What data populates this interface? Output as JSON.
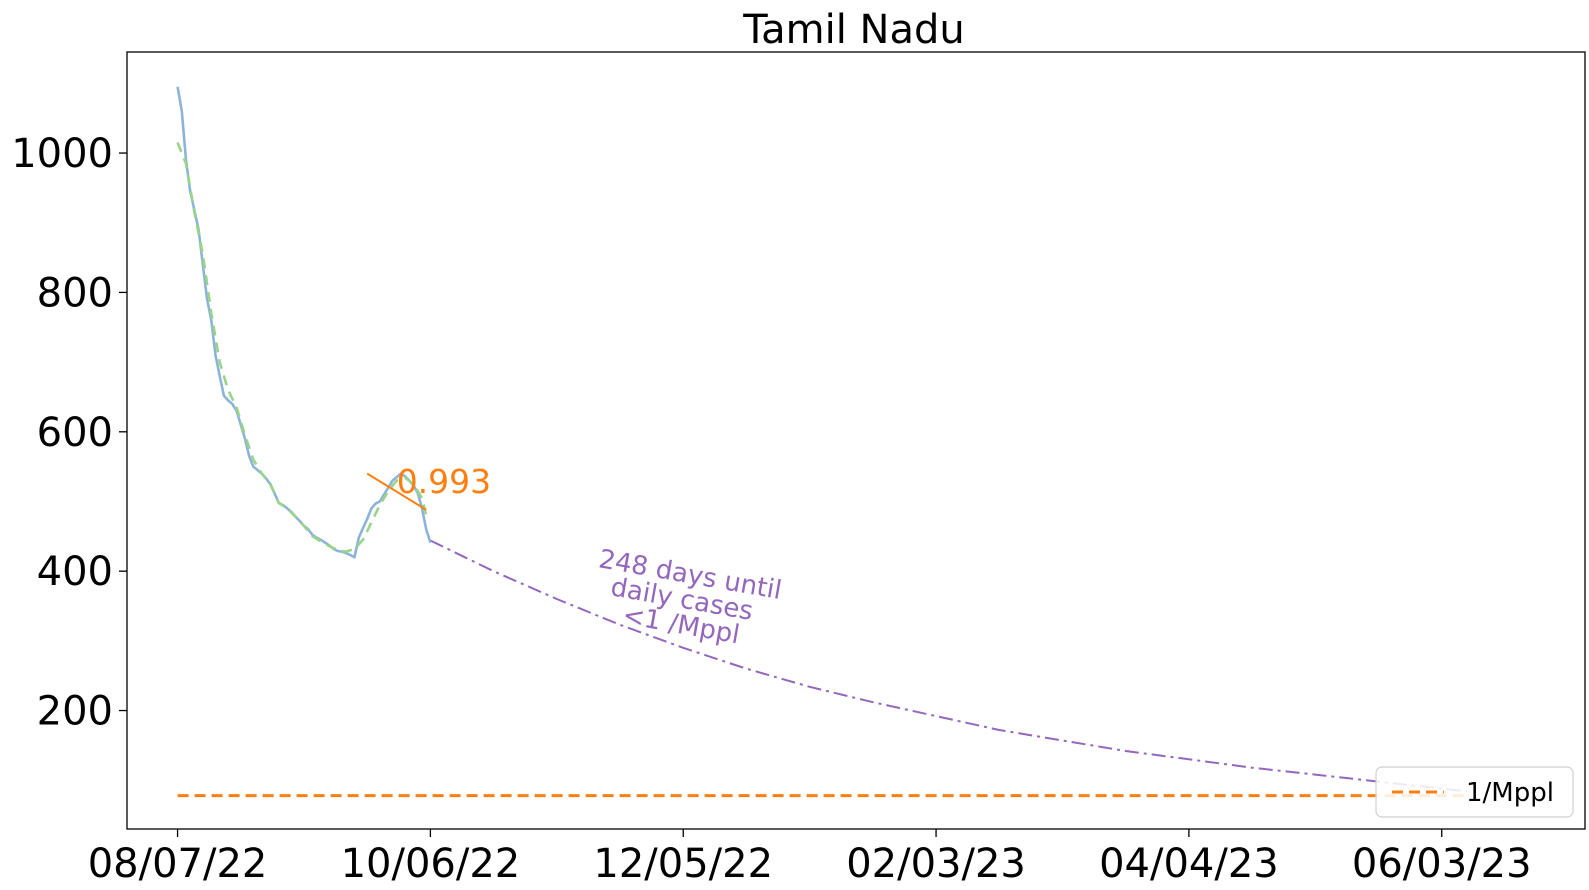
{
  "chart_data": {
    "type": "line",
    "title": "Tamil Nadu",
    "xlabel": "",
    "ylabel": "",
    "x_axis": {
      "type": "date",
      "range": [
        "2022-07-26",
        "2023-07-07"
      ],
      "ticks": [
        {
          "date": "2022-08-07",
          "label": "08/07/22"
        },
        {
          "date": "2022-10-06",
          "label": "10/06/22"
        },
        {
          "date": "2022-12-05",
          "label": "12/05/22"
        },
        {
          "date": "2023-02-03",
          "label": "02/03/23"
        },
        {
          "date": "2023-04-04",
          "label": "04/04/23"
        },
        {
          "date": "2023-06-03",
          "label": "06/03/23"
        }
      ]
    },
    "y_axis": {
      "range": [
        30,
        1145
      ],
      "ticks": [
        200,
        400,
        600,
        800,
        1000
      ]
    },
    "grid": false,
    "legend_position": "bottom-right",
    "legend": [
      {
        "label": "1/Mppl",
        "color": "#ff7f0e",
        "dash": "dashed"
      }
    ],
    "colors": {
      "observed": "#8db4d8",
      "smoothed": "#98d58a",
      "trend": "#ff7f0e",
      "projection": "#9467bd",
      "threshold": "#ff7f0e"
    },
    "series": [
      {
        "role": "observed",
        "x": [
          "2022-08-07",
          "2022-08-08",
          "2022-08-09",
          "2022-08-10",
          "2022-08-11",
          "2022-08-12",
          "2022-08-13",
          "2022-08-14",
          "2022-08-15",
          "2022-08-16",
          "2022-08-17",
          "2022-08-18",
          "2022-08-19",
          "2022-08-20",
          "2022-08-21",
          "2022-08-22",
          "2022-08-23",
          "2022-08-24",
          "2022-08-25",
          "2022-08-26",
          "2022-08-27",
          "2022-08-28",
          "2022-08-29",
          "2022-08-30",
          "2022-08-31",
          "2022-09-01",
          "2022-09-02",
          "2022-09-03",
          "2022-09-04",
          "2022-09-05",
          "2022-09-06",
          "2022-09-07",
          "2022-09-08",
          "2022-09-09",
          "2022-09-10",
          "2022-09-11",
          "2022-09-12",
          "2022-09-13",
          "2022-09-14",
          "2022-09-15",
          "2022-09-16",
          "2022-09-17",
          "2022-09-18",
          "2022-09-19",
          "2022-09-20",
          "2022-09-21",
          "2022-09-22",
          "2022-09-23",
          "2022-09-24",
          "2022-09-25",
          "2022-09-26",
          "2022-09-27",
          "2022-09-28",
          "2022-09-29",
          "2022-09-30",
          "2022-10-01",
          "2022-10-02",
          "2022-10-03",
          "2022-10-04",
          "2022-10-05",
          "2022-10-06"
        ],
        "values": [
          1095,
          1060,
          990,
          945,
          918,
          890,
          840,
          790,
          760,
          710,
          680,
          652,
          645,
          640,
          630,
          610,
          590,
          565,
          550,
          545,
          540,
          533,
          525,
          512,
          498,
          495,
          490,
          485,
          478,
          472,
          465,
          460,
          452,
          448,
          445,
          441,
          437,
          432,
          429,
          428,
          426,
          423,
          420,
          448,
          462,
          475,
          490,
          497,
          500,
          510,
          520,
          530,
          535,
          540,
          536,
          530,
          523,
          512,
          490,
          460,
          441
        ]
      },
      {
        "role": "smoothed",
        "x": [
          "2022-08-07",
          "2022-08-09",
          "2022-08-11",
          "2022-08-13",
          "2022-08-15",
          "2022-08-17",
          "2022-08-19",
          "2022-08-21",
          "2022-08-23",
          "2022-08-25",
          "2022-08-27",
          "2022-08-29",
          "2022-08-31",
          "2022-09-02",
          "2022-09-04",
          "2022-09-06",
          "2022-09-08",
          "2022-09-10",
          "2022-09-12",
          "2022-09-14",
          "2022-09-16",
          "2022-09-18",
          "2022-09-20",
          "2022-09-22",
          "2022-09-24",
          "2022-09-26",
          "2022-09-28",
          "2022-09-30",
          "2022-10-02",
          "2022-10-04",
          "2022-10-05"
        ],
        "values": [
          1015,
          985,
          915,
          855,
          770,
          700,
          660,
          635,
          595,
          560,
          540,
          525,
          498,
          490,
          478,
          465,
          450,
          443,
          436,
          430,
          428,
          432,
          445,
          470,
          495,
          515,
          530,
          534,
          525,
          505,
          480
        ]
      },
      {
        "role": "trend",
        "label": "0.993",
        "x": [
          "2022-09-21",
          "2022-10-05"
        ],
        "values": [
          540,
          488
        ]
      },
      {
        "role": "projection",
        "x": [
          "2022-10-06",
          "2022-10-21",
          "2022-11-05",
          "2022-11-20",
          "2022-12-05",
          "2022-12-20",
          "2023-01-04",
          "2023-01-19",
          "2023-02-03",
          "2023-02-18",
          "2023-03-05",
          "2023-03-20",
          "2023-04-04",
          "2023-04-19",
          "2023-05-04",
          "2023-05-19",
          "2023-06-03",
          "2023-06-09"
        ],
        "values": [
          444,
          400,
          360,
          323,
          290,
          260,
          234,
          212,
          192,
          172,
          157,
          142,
          130,
          118,
          108,
          98,
          88,
          84
        ]
      },
      {
        "role": "threshold",
        "name": "1/Mppl",
        "x": [
          "2022-08-07",
          "2023-06-09"
        ],
        "values": [
          78,
          78
        ]
      }
    ],
    "annotations": [
      {
        "text": "0.993",
        "x": "2022-09-28",
        "y": 512,
        "color": "#ff7f0e"
      },
      {
        "lines": [
          "248 days until",
          "daily cases",
          "<1 /Mppl"
        ],
        "x": "2022-11-18",
        "y": 340,
        "rotation": 10,
        "color": "#9467bd"
      }
    ]
  }
}
